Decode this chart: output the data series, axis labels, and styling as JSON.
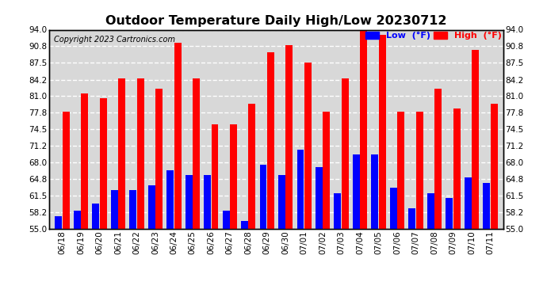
{
  "title": "Outdoor Temperature Daily High/Low 20230712",
  "copyright": "Copyright 2023 Cartronics.com",
  "legend_low": "Low  (°F)",
  "legend_high": "High  (°F)",
  "categories": [
    "06/18",
    "06/19",
    "06/20",
    "06/21",
    "06/22",
    "06/23",
    "06/24",
    "06/25",
    "06/26",
    "06/27",
    "06/28",
    "06/29",
    "06/30",
    "07/01",
    "07/02",
    "07/03",
    "07/04",
    "07/05",
    "07/06",
    "07/07",
    "07/08",
    "07/09",
    "07/10",
    "07/11"
  ],
  "high": [
    78.0,
    81.5,
    80.5,
    84.5,
    84.5,
    82.5,
    91.5,
    84.5,
    75.5,
    75.5,
    79.5,
    89.5,
    91.0,
    87.5,
    78.0,
    84.5,
    94.0,
    93.0,
    78.0,
    78.0,
    82.5,
    78.5,
    90.0,
    79.5
  ],
  "low": [
    57.5,
    58.5,
    60.0,
    62.5,
    62.5,
    63.5,
    66.5,
    65.5,
    65.5,
    58.5,
    56.5,
    67.5,
    65.5,
    70.5,
    67.0,
    62.0,
    69.5,
    69.5,
    63.0,
    59.0,
    62.0,
    61.0,
    65.0,
    64.0
  ],
  "bar_color_high": "#ff0000",
  "bar_color_low": "#0000ff",
  "bg_color": "#ffffff",
  "plot_bg_color": "#d8d8d8",
  "grid_color": "#ffffff",
  "title_color": "#000000",
  "copyright_color": "#000000",
  "low_label_color": "#0000ff",
  "high_label_color": "#ff0000",
  "ymin": 55.0,
  "ymax": 94.0,
  "yticks": [
    55.0,
    58.2,
    61.5,
    64.8,
    68.0,
    71.2,
    74.5,
    77.8,
    81.0,
    84.2,
    87.5,
    90.8,
    94.0
  ]
}
